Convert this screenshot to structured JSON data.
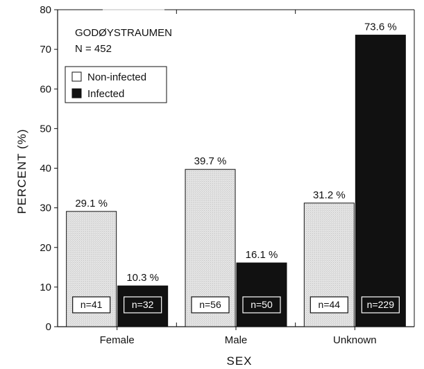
{
  "chart_data": {
    "type": "bar",
    "annotation_lines": [
      "GODØYSTRAUMEN",
      "N = 452"
    ],
    "xlabel": "SEX",
    "ylabel": "PERCENT (%)",
    "categories": [
      "Female",
      "Male",
      "Unknown"
    ],
    "ylim": [
      0,
      80
    ],
    "yticks": [
      0,
      10,
      20,
      30,
      40,
      50,
      60,
      70,
      80
    ],
    "legend_position": "top-left",
    "grid": false,
    "series": [
      {
        "name": "Non-infected",
        "color": "#e0e0e0",
        "values": [
          29.1,
          39.7,
          31.2
        ],
        "value_labels": [
          "29.1 %",
          "39.7 %",
          "31.2 %"
        ],
        "n_labels": [
          "n=41",
          "n=56",
          "n=44"
        ]
      },
      {
        "name": "Infected",
        "color": "#111111",
        "values": [
          10.3,
          16.1,
          73.6
        ],
        "value_labels": [
          "10.3 %",
          "16.1 %",
          "73.6 %"
        ],
        "n_labels": [
          "n=32",
          "n=50",
          "n=229"
        ]
      }
    ]
  }
}
